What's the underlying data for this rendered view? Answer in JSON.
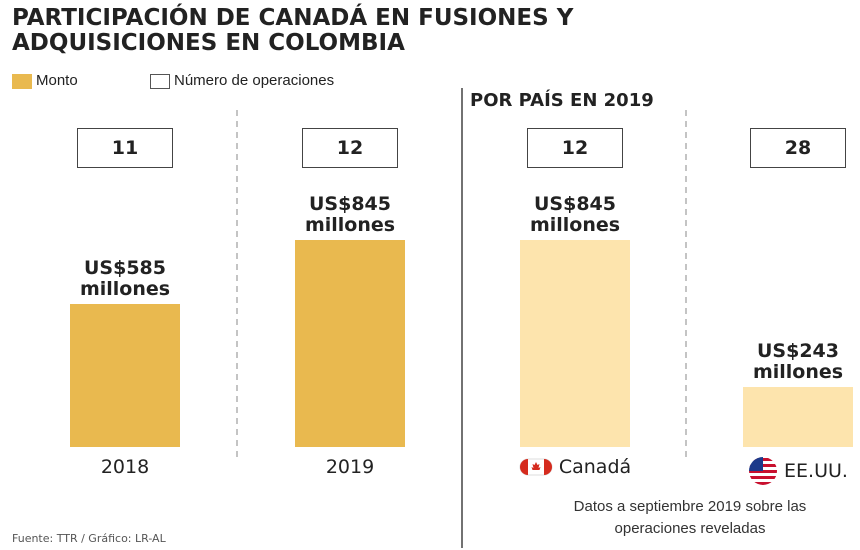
{
  "title": "PARTICIPACIÓN DE CANADÁ EN FUSIONES Y ADQUISICIONES EN COLOMBIA",
  "source": "Fuente: TTR / Gráfico: LR-AL",
  "note": "Datos a septiembre 2019 sobre las operaciones reveladas",
  "chart_data": [
    {
      "type": "bar",
      "categories": [
        "2018",
        "2019"
      ],
      "series": [
        {
          "name": "Monto",
          "color": "#e9b94f",
          "values": [
            585,
            845
          ],
          "value_labels": [
            "US$585 millones",
            "US$845 millones"
          ]
        },
        {
          "name": "Número de operaciones",
          "color": "#ffffff",
          "values": [
            11,
            12
          ]
        }
      ]
    },
    {
      "type": "bar",
      "title": "POR PAÍS EN 2019",
      "categories": [
        "Canadá",
        "EE.UU."
      ],
      "series": [
        {
          "color": "#fde4ad",
          "values": [
            845,
            243
          ],
          "value_labels": [
            "US$845 millones",
            "US$243 millones"
          ]
        },
        {
          "color": "#ffffff",
          "values": [
            12,
            28
          ]
        }
      ]
    }
  ]
}
